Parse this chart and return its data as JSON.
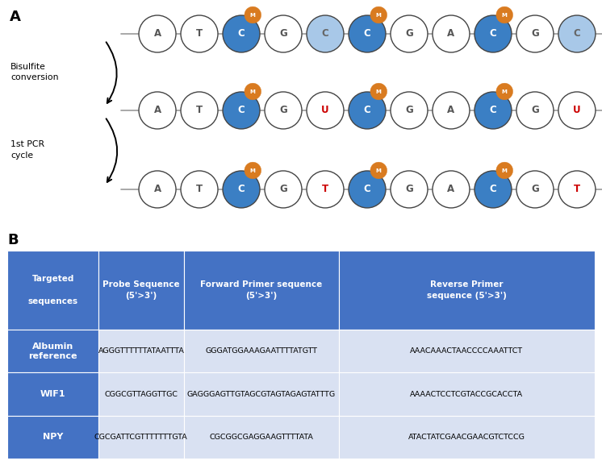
{
  "panel_a_label": "A",
  "panel_b_label": "B",
  "row1_letters": [
    "A",
    "T",
    "C",
    "G",
    "C",
    "C",
    "G",
    "A",
    "C",
    "G",
    "C"
  ],
  "row1_colors": [
    "none",
    "none",
    "dark_blue",
    "none",
    "light_blue",
    "dark_blue",
    "none",
    "none",
    "dark_blue",
    "none",
    "light_blue"
  ],
  "row1_methylated": [
    false,
    false,
    true,
    false,
    false,
    true,
    false,
    false,
    true,
    false,
    false
  ],
  "row2_letters": [
    "A",
    "T",
    "C",
    "G",
    "U",
    "C",
    "G",
    "A",
    "C",
    "G",
    "U"
  ],
  "row2_colors": [
    "none",
    "none",
    "dark_blue",
    "none",
    "red_letter",
    "dark_blue",
    "none",
    "none",
    "dark_blue",
    "none",
    "red_letter"
  ],
  "row2_methylated": [
    false,
    false,
    true,
    false,
    false,
    true,
    false,
    false,
    true,
    false,
    false
  ],
  "row3_letters": [
    "A",
    "T",
    "C",
    "G",
    "T",
    "C",
    "G",
    "A",
    "C",
    "G",
    "T"
  ],
  "row3_colors": [
    "none",
    "none",
    "dark_blue",
    "none",
    "red_letter",
    "dark_blue",
    "none",
    "none",
    "dark_blue",
    "none",
    "red_letter"
  ],
  "row3_methylated": [
    false,
    false,
    true,
    false,
    false,
    true,
    false,
    false,
    true,
    false,
    false
  ],
  "label1": "Bisulfite\nconversion",
  "label2": "1st PCR\ncycle",
  "dark_blue": "#3B7FC4",
  "light_blue": "#A8C8E8",
  "orange": "#D97B20",
  "red_letter": "#CC0000",
  "table_header_color": "#4472C4",
  "table_light_color": "#D9E1F2",
  "table_headers": [
    "Targeted\n\nsequences",
    "Probe Sequence\n(5'>3')",
    "Forward Primer sequence\n(5'>3')",
    "Reverse Primer\nsequence (5'>3')"
  ],
  "table_data": [
    [
      "Albumin\nreference",
      "AGGGTTTTTTATAATTTA",
      "GGGATGGAAAGAATTTTATGTT",
      "AAACAAACTAACCCCAAATTCT"
    ],
    [
      "WIF1",
      "CGGCGTTAGGTTGC",
      "GAGGGAGTTGTAGCGTAGTAGAGTATTTG",
      "AAAACTCCTCGTACCGCACCTA"
    ],
    [
      "NPY",
      "CGCGATTCGTTTTTTTGTA",
      "CGCGGCGAGGAAGTTTTATA",
      "ATACTATCGAACGAACGTCTCCG"
    ]
  ],
  "fig_width": 7.46,
  "fig_height": 5.77,
  "dpi": 100
}
